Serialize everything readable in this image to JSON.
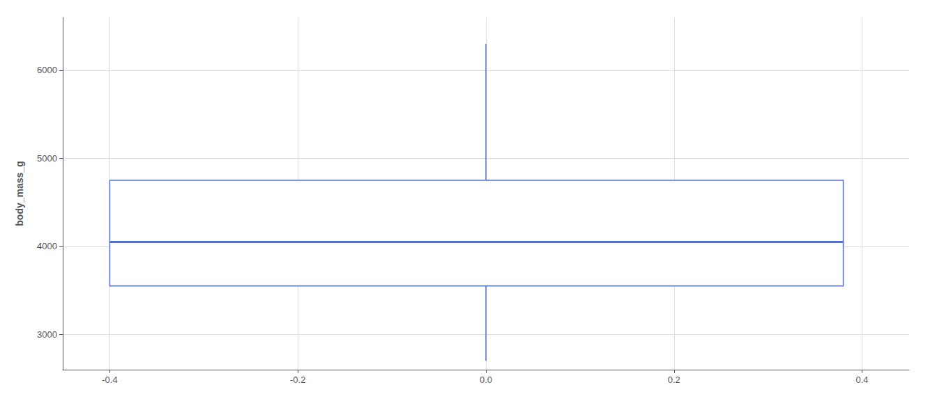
{
  "chart_data": {
    "type": "boxplot",
    "ylabel": "body_mass_g",
    "box": {
      "whisker_low": 2700,
      "q1": 3550,
      "median": 4050,
      "q3": 4750,
      "whisker_high": 6300,
      "x_min": -0.4,
      "x_max": 0.38,
      "whisker_x": 0.0
    },
    "xlim": [
      -0.45,
      0.45
    ],
    "xticks": [
      -0.4,
      -0.2,
      {
        "value": 0.0,
        "label": "0.0"
      },
      0.2,
      0.4
    ],
    "ylim": [
      2600,
      6600
    ],
    "yticks": [
      3000,
      4000,
      5000,
      6000
    ],
    "grid": true
  }
}
